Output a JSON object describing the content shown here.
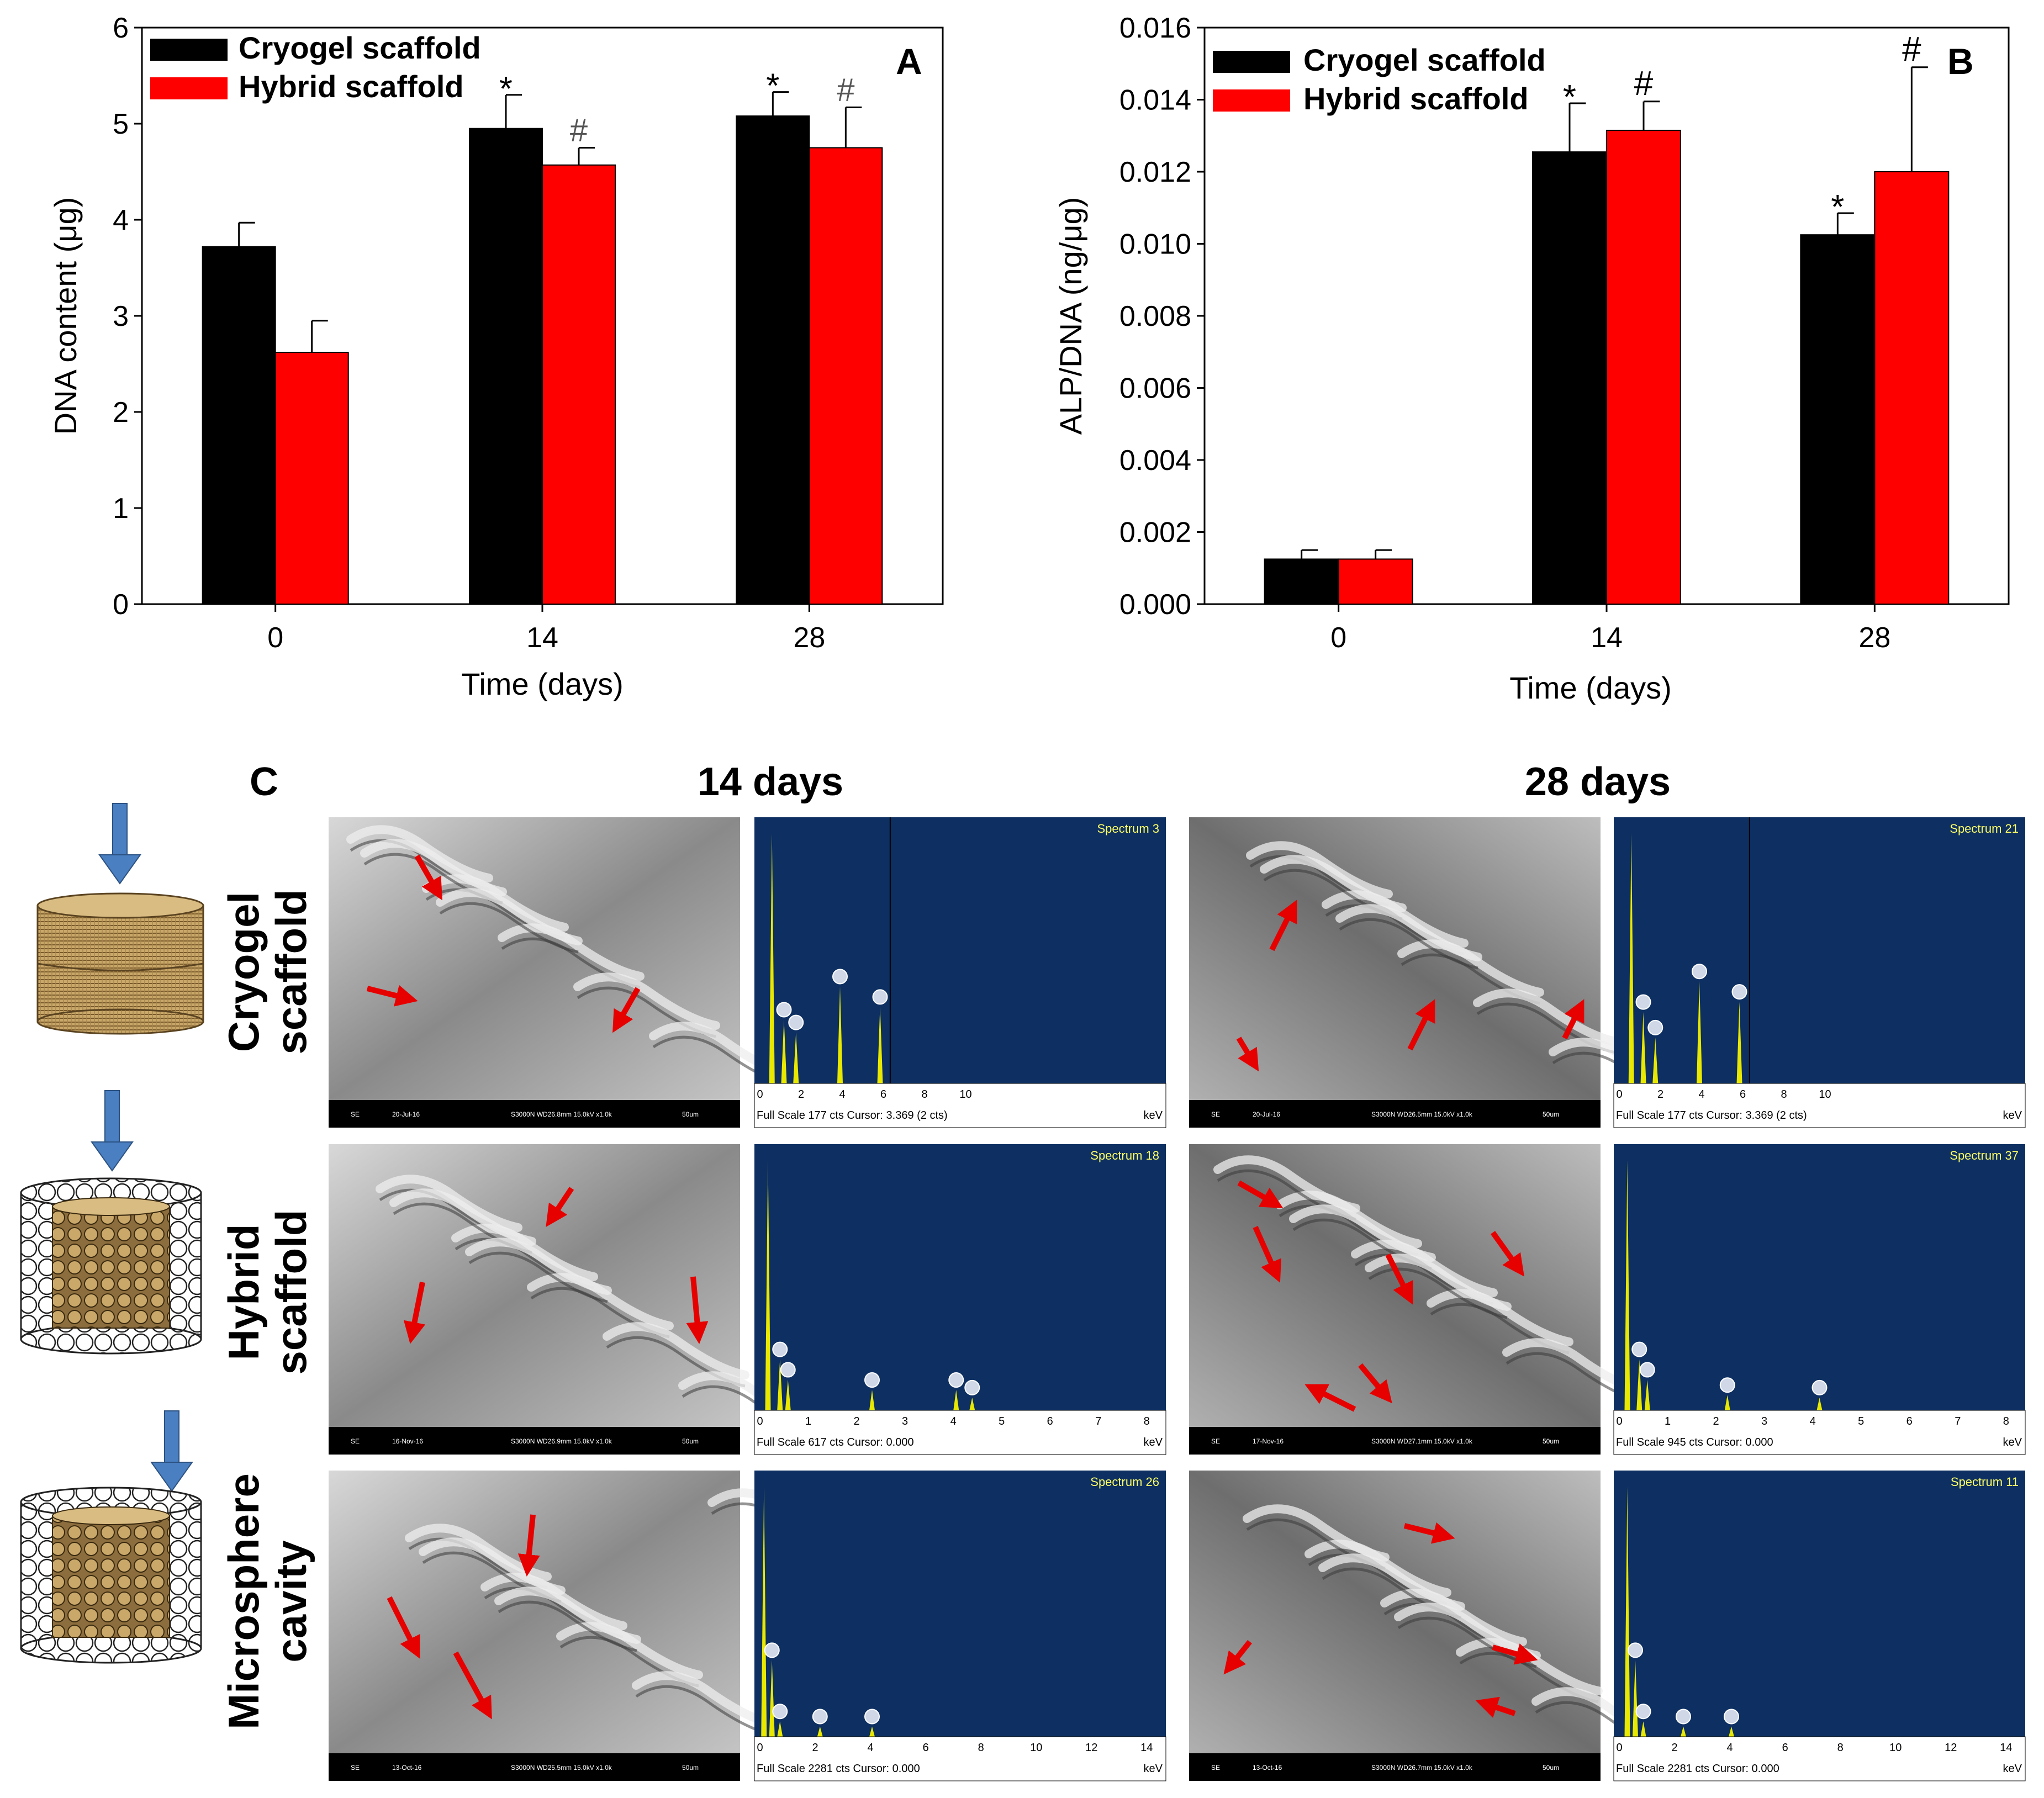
{
  "colors": {
    "cryogel": "#000000",
    "hybrid": "#ff0000",
    "spectrum_bg": "#0d2f61",
    "spectrum_peak": "#e8e800",
    "arrow": "#e60000",
    "schematic_arrow": "#4a7fc1"
  },
  "chart_data": [
    {
      "type": "bar",
      "panel": "A",
      "categories": [
        "0",
        "14",
        "28"
      ],
      "series": [
        {
          "name": "Cryogel scaffold",
          "values": [
            3.72,
            4.95,
            5.08
          ],
          "errors": [
            0.25,
            0.35,
            0.25
          ],
          "marks": [
            "",
            "*",
            "*"
          ]
        },
        {
          "name": "Hybrid scaffold",
          "values": [
            2.62,
            4.57,
            4.75
          ],
          "errors": [
            0.33,
            0.18,
            0.42
          ],
          "marks": [
            "",
            "#",
            "#"
          ]
        }
      ],
      "xlabel": "Time (days)",
      "ylabel": "DNA content (μg)",
      "ylim": [
        0,
        6
      ],
      "yticks": [
        "0",
        "1",
        "2",
        "3",
        "4",
        "5",
        "6"
      ],
      "legend": "top-left",
      "grid": false
    },
    {
      "type": "bar",
      "panel": "B",
      "categories": [
        "0",
        "14",
        "28"
      ],
      "series": [
        {
          "name": "Cryogel scaffold",
          "values": [
            0.00125,
            0.01255,
            0.01025
          ],
          "errors": [
            0.00025,
            0.00135,
            0.0006
          ],
          "marks": [
            "",
            "*",
            "*"
          ]
        },
        {
          "name": "Hybrid scaffold",
          "values": [
            0.00125,
            0.01315,
            0.012
          ],
          "errors": [
            0.00025,
            0.0008,
            0.0029
          ],
          "marks": [
            "",
            "#",
            "#"
          ]
        }
      ],
      "xlabel": "Time (days)",
      "ylabel": "ALP/DNA (ng/μg)",
      "ylim": [
        0,
        0.016
      ],
      "yticks": [
        "0.000",
        "0.002",
        "0.004",
        "0.006",
        "0.008",
        "0.010",
        "0.012",
        "0.014",
        "0.016"
      ],
      "legend": "top-left",
      "grid": false
    }
  ],
  "panel_c": {
    "letter": "C",
    "col_headings": [
      "14 days",
      "28 days"
    ],
    "rows": [
      {
        "label_line1": "Cryogel",
        "label_line2": "scaffold",
        "sem": [
          {
            "footer_left": "SE",
            "footer_date": "20-Jul-16",
            "footer_info": "S3000N WD26.8mm 15.0kV x1.0k",
            "footer_scale": "50um"
          },
          {
            "footer_left": "SE",
            "footer_date": "20-Jul-16",
            "footer_info": "S3000N WD26.5mm 15.0kV x1.0k",
            "footer_scale": "50um"
          }
        ],
        "edx": [
          {
            "spectrum_label": "Spectrum 3",
            "footer": "Full Scale 177 cts Cursor: 3.369 (2 cts)",
            "unit": "keV",
            "axis_ticks": [
              "0",
              "2",
              "4",
              "6",
              "8",
              "10"
            ]
          },
          {
            "spectrum_label": "Spectrum 21",
            "footer": "Full Scale 177 cts Cursor: 3.369 (2 cts)",
            "unit": "keV",
            "axis_ticks": [
              "0",
              "2",
              "4",
              "6",
              "8",
              "10"
            ]
          }
        ]
      },
      {
        "label_line1": "Hybrid",
        "label_line2": "scaffold",
        "sem": [
          {
            "footer_left": "SE",
            "footer_date": "16-Nov-16",
            "footer_info": "S3000N WD26.9mm 15.0kV x1.0k",
            "footer_scale": "50um"
          },
          {
            "footer_left": "SE",
            "footer_date": "17-Nov-16",
            "footer_info": "S3000N WD27.1mm 15.0kV x1.0k",
            "footer_scale": "50um"
          }
        ],
        "edx": [
          {
            "spectrum_label": "Spectrum 18",
            "footer": "Full Scale 617 cts Cursor: 0.000",
            "unit": "keV",
            "axis_ticks": [
              "0",
              "1",
              "2",
              "3",
              "4",
              "5",
              "6",
              "7",
              "8"
            ]
          },
          {
            "spectrum_label": "Spectrum 37",
            "footer": "Full Scale 945 cts Cursor: 0.000",
            "unit": "keV",
            "axis_ticks": [
              "0",
              "1",
              "2",
              "3",
              "4",
              "5",
              "6",
              "7",
              "8"
            ]
          }
        ]
      },
      {
        "label_line1": "Microsphere",
        "label_line2": "cavity",
        "sem": [
          {
            "footer_left": "SE",
            "footer_date": "13-Oct-16",
            "footer_info": "S3000N WD25.5mm 15.0kV x1.0k",
            "footer_scale": "50um"
          },
          {
            "footer_left": "SE",
            "footer_date": "13-Oct-16",
            "footer_info": "S3000N WD26.7mm 15.0kV x1.0k",
            "footer_scale": "50um"
          }
        ],
        "edx": [
          {
            "spectrum_label": "Spectrum 26",
            "footer": "Full Scale 2281 cts Cursor: 0.000",
            "unit": "keV",
            "axis_ticks": [
              "0",
              "2",
              "4",
              "6",
              "8",
              "10",
              "12",
              "14"
            ]
          },
          {
            "spectrum_label": "Spectrum 11",
            "footer": "Full Scale 2281 cts Cursor: 0.000",
            "unit": "keV",
            "axis_ticks": [
              "0",
              "2",
              "4",
              "6",
              "8",
              "10",
              "12",
              "14"
            ]
          }
        ]
      }
    ]
  }
}
